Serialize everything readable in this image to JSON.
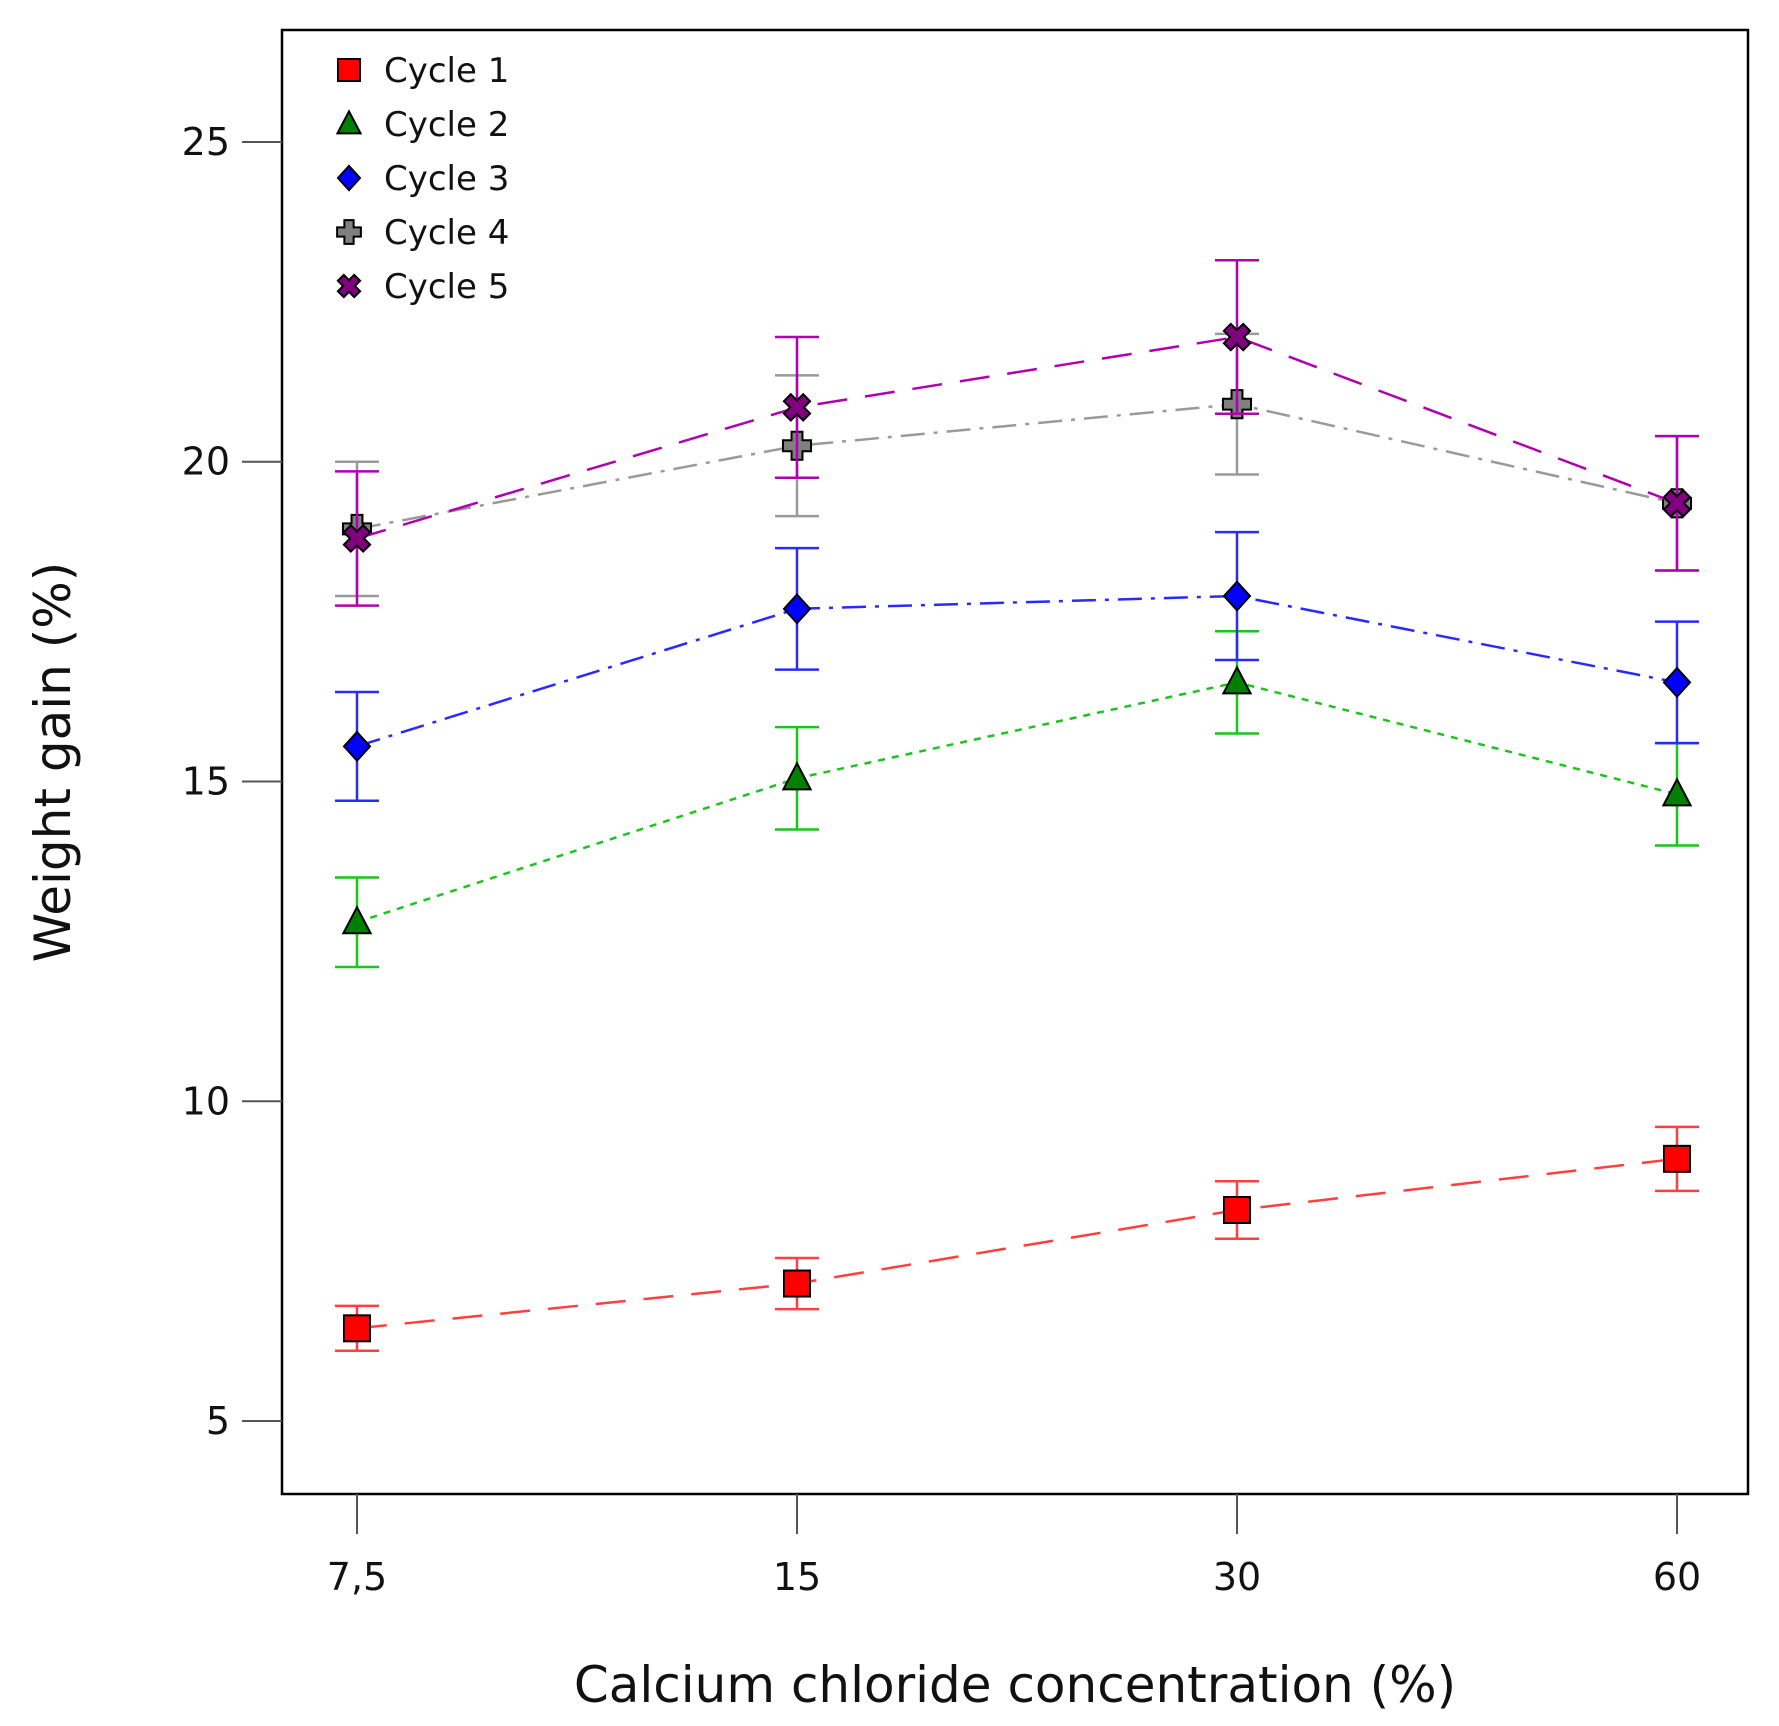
{
  "chart_data": {
    "type": "line",
    "xlabel": "Calcium chloride concentration (%)",
    "ylabel": "Weight gain (%)",
    "categories": [
      "7,5",
      "15",
      "30",
      "60"
    ],
    "ylim": [
      3.9,
      26.0
    ],
    "yticks": [
      5,
      10,
      15,
      20,
      25
    ],
    "ytick_labels": [
      "5",
      "10",
      "15",
      "20",
      "25"
    ],
    "legend_position": "top-left",
    "series": [
      {
        "name": "Cycle 1",
        "values": [
          6.45,
          7.15,
          8.3,
          9.1
        ],
        "errors": [
          0.35,
          0.4,
          0.45,
          0.5
        ],
        "color": "#ff0000",
        "line_color": "#ff4040",
        "marker": "square",
        "dash": "dashed"
      },
      {
        "name": "Cycle 2",
        "values": [
          12.8,
          15.05,
          16.55,
          14.8
        ],
        "errors": [
          0.7,
          0.8,
          0.8,
          0.8
        ],
        "color": "#008000",
        "line_color": "#1ec41e",
        "marker": "triangle",
        "dash": "dotted"
      },
      {
        "name": "Cycle 3",
        "values": [
          15.55,
          17.7,
          17.9,
          16.55
        ],
        "errors": [
          0.85,
          0.95,
          1.0,
          0.95
        ],
        "color": "#0000ff",
        "line_color": "#2a2aff",
        "marker": "diamond",
        "dash": "dashdot"
      },
      {
        "name": "Cycle 4",
        "values": [
          18.95,
          20.25,
          20.9,
          19.35
        ],
        "errors": [
          1.05,
          1.1,
          1.1,
          1.05
        ],
        "color": "#808080",
        "line_color": "#9a9a9a",
        "marker": "plus",
        "dash": "dashdot"
      },
      {
        "name": "Cycle 5",
        "values": [
          18.8,
          20.85,
          21.95,
          19.35
        ],
        "errors": [
          1.05,
          1.1,
          1.2,
          1.05
        ],
        "color": "#800080",
        "line_color": "#b000b0",
        "marker": "x",
        "dash": "dashed"
      }
    ]
  }
}
